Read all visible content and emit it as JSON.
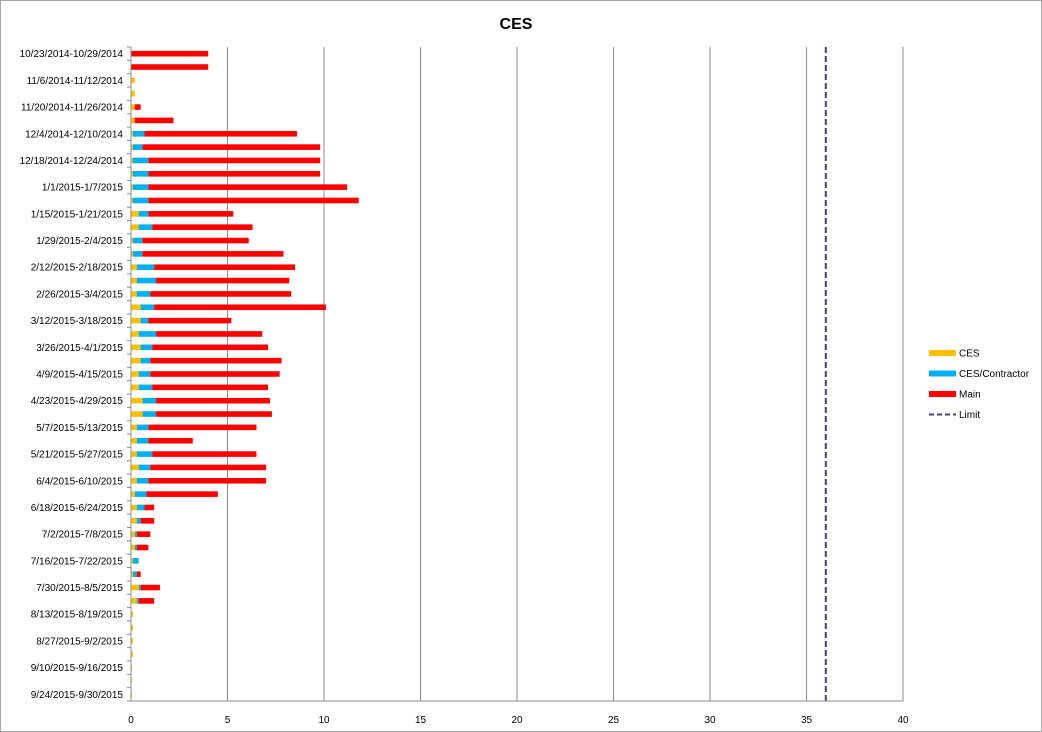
{
  "chart_data": {
    "type": "bar",
    "orientation": "horizontal",
    "stacked": true,
    "title": "CES",
    "xlabel": "",
    "ylabel": "",
    "xlim": [
      0,
      40
    ],
    "x_ticks": [
      0,
      5,
      10,
      15,
      20,
      25,
      30,
      35,
      40
    ],
    "gridlines": "vertical",
    "legend_position": "right",
    "categories": [
      "10/23/2014-10/29/2014",
      "",
      "11/6/2014-11/12/2014",
      "",
      "11/20/2014-11/26/2014",
      "",
      "12/4/2014-12/10/2014",
      "",
      "12/18/2014-12/24/2014",
      "",
      "1/1/2015-1/7/2015",
      "",
      "1/15/2015-1/21/2015",
      "",
      "1/29/2015-2/4/2015",
      "",
      "2/12/2015-2/18/2015",
      "",
      "2/26/2015-3/4/2015",
      "",
      "3/12/2015-3/18/2015",
      "",
      "3/26/2015-4/1/2015",
      "",
      "4/9/2015-4/15/2015",
      "",
      "4/23/2015-4/29/2015",
      "",
      "5/7/2015-5/13/2015",
      "",
      "5/21/2015-5/27/2015",
      "",
      "6/4/2015-6/10/2015",
      "",
      "6/18/2015-6/24/2015",
      "",
      "7/2/2015-7/8/2015",
      "",
      "7/16/2015-7/22/2015",
      "",
      "7/30/2015-8/5/2015",
      "",
      "8/13/2015-8/19/2015",
      "",
      "8/27/2015-9/2/2015",
      "",
      "9/10/2015-9/16/2015",
      "",
      "9/24/2015-9/30/2015"
    ],
    "series": [
      {
        "name": "CES",
        "color": "#ffc000",
        "values": [
          0,
          0,
          0.2,
          0.2,
          0.2,
          0.2,
          0.1,
          0.1,
          0.1,
          0.1,
          0.1,
          0.1,
          0.4,
          0.4,
          0.1,
          0.1,
          0.3,
          0.3,
          0.3,
          0.5,
          0.5,
          0.4,
          0.5,
          0.5,
          0.4,
          0.4,
          0.6,
          0.6,
          0.3,
          0.3,
          0.3,
          0.4,
          0.3,
          0.2,
          0.3,
          0.3,
          0.2,
          0.2,
          0.1,
          0.1,
          0.4,
          0.3,
          0.1,
          0.1,
          0.1,
          0.1,
          0.05,
          0.05,
          0.05
        ]
      },
      {
        "name": "CES/Contractor",
        "color": "#00b0f0",
        "values": [
          0,
          0,
          0,
          0,
          0,
          0,
          0.6,
          0.5,
          0.8,
          0.8,
          0.8,
          0.8,
          0.5,
          0.7,
          0.5,
          0.5,
          0.9,
          1.0,
          0.7,
          0.7,
          0.4,
          0.9,
          0.6,
          0.5,
          0.6,
          0.7,
          0.7,
          0.7,
          0.6,
          0.6,
          0.8,
          0.6,
          0.6,
          0.6,
          0.4,
          0.2,
          0.1,
          0.1,
          0.3,
          0.2,
          0.1,
          0.1,
          0,
          0,
          0,
          0,
          0,
          0,
          0
        ]
      },
      {
        "name": "Main",
        "color": "#ff0000",
        "values": [
          4.0,
          4.0,
          0,
          0,
          0.3,
          2.0,
          7.9,
          9.2,
          8.9,
          8.9,
          10.3,
          10.9,
          4.4,
          5.2,
          5.5,
          7.3,
          7.3,
          6.9,
          7.3,
          8.9,
          4.3,
          5.5,
          6.0,
          6.8,
          6.7,
          6.0,
          5.9,
          6.0,
          5.6,
          2.3,
          5.4,
          6.0,
          6.1,
          3.7,
          0.5,
          0.7,
          0.7,
          0.6,
          0,
          0.2,
          1.0,
          0.8,
          0,
          0,
          0,
          0,
          0,
          0,
          0
        ]
      }
    ],
    "limit": {
      "name": "Limit",
      "value": 36,
      "color": "#404080",
      "style": "dashed"
    }
  }
}
